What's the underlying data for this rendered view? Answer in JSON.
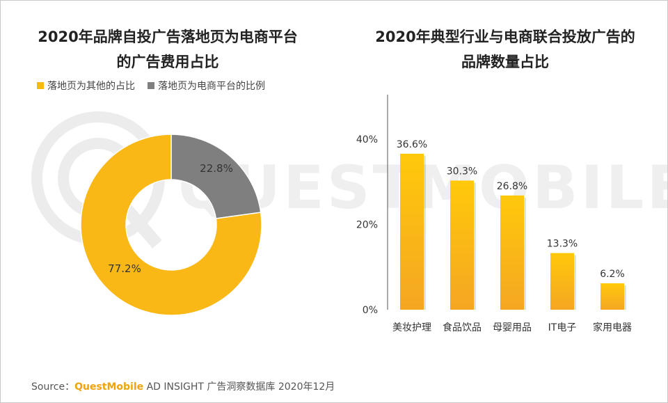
{
  "left_title": {
    "line1": "2020年品牌自投广告落地页为电商平台",
    "line2": "的广告费用占比"
  },
  "right_title": {
    "line1": "2020年典型行业与电商联合投放广告的",
    "line2": "品牌数量占比"
  },
  "watermark": "QUESTMOBILE",
  "source": {
    "label": "Source：",
    "brand": "QuestMobile",
    "rest": " AD INSIGHT 广告洞察数据库 2020年12月"
  },
  "colors": {
    "yellow": "#FAB817",
    "gray": "#7F7F7F",
    "bar_top": "#FFC90A",
    "bar_bottom": "#F5A623"
  },
  "chart_data": [
    {
      "type": "pie",
      "donut": true,
      "legend_position": "top-left",
      "slices": [
        {
          "name": "落地页为其他的占比",
          "value": 77.2,
          "label": "77.2%",
          "color": "#FAB817"
        },
        {
          "name": "落地页为电商平台的比例",
          "value": 22.8,
          "label": "22.8%",
          "color": "#7F7F7F"
        }
      ]
    },
    {
      "type": "bar",
      "categories": [
        "美妆护理",
        "食品饮品",
        "母婴用品",
        "IT电子",
        "家用电器"
      ],
      "values": [
        36.6,
        30.3,
        26.8,
        13.3,
        6.2
      ],
      "value_labels": [
        "36.6%",
        "30.3%",
        "26.8%",
        "13.3%",
        "6.2%"
      ],
      "ylim": [
        0,
        40
      ],
      "yticks": [
        0,
        20,
        40
      ],
      "ytick_labels": [
        "0%",
        "20%",
        "40%"
      ],
      "grid": false
    }
  ]
}
